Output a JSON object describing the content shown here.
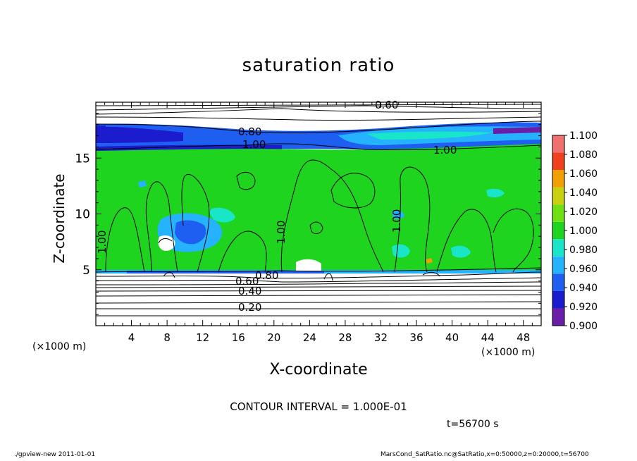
{
  "chart_data": {
    "type": "heatmap",
    "title": "saturation ratio",
    "xlabel": "X-coordinate",
    "ylabel": "Z-coordinate",
    "x_unit_label": "(×1000 m)",
    "xlim": [
      0,
      50
    ],
    "ylim": [
      0,
      20
    ],
    "x_ticks": [
      4,
      8,
      12,
      16,
      20,
      24,
      28,
      32,
      36,
      40,
      44,
      48
    ],
    "y_ticks": [
      5,
      10,
      15
    ],
    "colorbar": {
      "levels": [
        "0.900",
        "0.920",
        "0.940",
        "0.960",
        "0.980",
        "1.000",
        "1.020",
        "1.040",
        "1.060",
        "1.080",
        "1.100"
      ],
      "colors": [
        "#6a1ea8",
        "#1c1ccf",
        "#1e5ef0",
        "#25b2ff",
        "#19e6c8",
        "#1fd41f",
        "#6fe014",
        "#c8d010",
        "#f0a000",
        "#f04020",
        "#f07070"
      ]
    },
    "contour_labels": [
      "0.60",
      "0.80",
      "1.00",
      "1.00",
      "1.00",
      "1.00",
      "1.00",
      "0.80",
      "0.60",
      "0.40",
      "0.20"
    ],
    "contour_interval_text": "CONTOUR INTERVAL = 1.000E-01",
    "time_text": "t=56700 s",
    "footer_left": "./gpview-new  2011-01-01",
    "footer_right": "MarsCond_SatRatio.nc@SatRatio,x=0:50000,z=0:20000,t=56700"
  }
}
